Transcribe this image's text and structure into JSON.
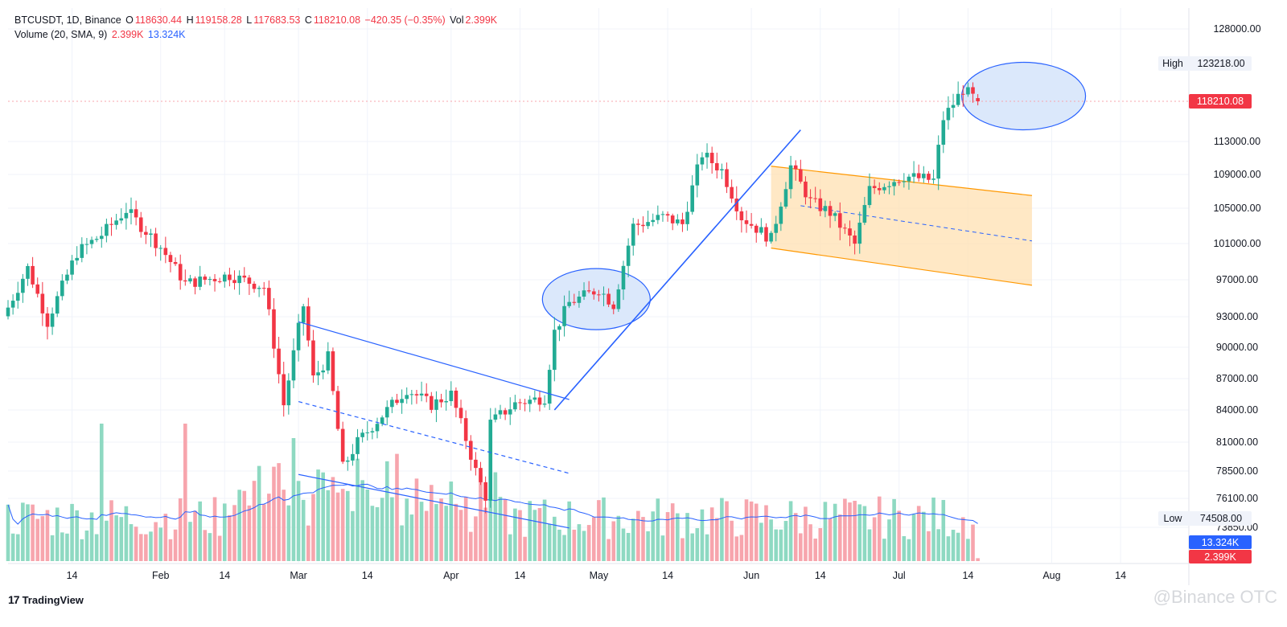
{
  "legend": {
    "symbol": "BTCUSDT, 1D, Binance",
    "o_label": "O",
    "o": "118630.44",
    "h_label": "H",
    "h": "119158.28",
    "l_label": "L",
    "l": "117683.53",
    "c_label": "C",
    "c": "118210.08",
    "change": "−420.35 (−0.35%)",
    "vol_label": "Vol",
    "vol": "2.399K",
    "volume_study": "Volume (20, SMA, 9)",
    "volume_value": "2.399K",
    "volume_sma": "13.324K"
  },
  "brand": {
    "logo": "17",
    "name": "TradingView"
  },
  "watermark": "@Binance OTC",
  "colors": {
    "up": "#22ab94",
    "down": "#f23645",
    "vol_up": "#8ed9c2",
    "vol_down": "#f7a5ad",
    "sma": "#2962ff",
    "trend": "#2962ff",
    "channel_fill": "#ffe0b2",
    "channel_edge": "#ff9800",
    "ellipse_fill": "#dbe8fb",
    "grid": "#f0f3fa"
  },
  "chart_data": {
    "type": "candlestick",
    "symbol": "BTCUSDT",
    "interval": "1D",
    "exchange": "Binance",
    "xlabel": "",
    "ylabel": "",
    "x_ticks": [
      "14",
      "Feb",
      "14",
      "Mar",
      "14",
      "Apr",
      "14",
      "May",
      "14",
      "Jun",
      "14",
      "Jul",
      "14",
      "Aug",
      "14"
    ],
    "y_ticks": [
      "128000.00",
      "113000.00",
      "109000.00",
      "105000.00",
      "101000.00",
      "97000.00",
      "93000.00",
      "90000.00",
      "87000.00",
      "84000.00",
      "81000.00",
      "78500.00",
      "76100.00",
      "73850.00"
    ],
    "y_range": [
      73500,
      129500
    ],
    "grid": true,
    "price_labels": [
      {
        "name": "High",
        "value": "123218.00"
      },
      {
        "name": "Low",
        "value": "74508.00"
      },
      {
        "name": "",
        "value": "118210.08",
        "kind": "last-price"
      }
    ],
    "volume_labels": [
      {
        "value": "13.324K",
        "kind": "sma"
      },
      {
        "value": "2.399K",
        "kind": "volume"
      }
    ],
    "anchors": [
      {
        "date": "2025-01-01",
        "close": 94000
      },
      {
        "date": "2025-01-05",
        "close": 98300
      },
      {
        "date": "2025-01-09",
        "close": 92500
      },
      {
        "date": "2025-01-15",
        "close": 100000
      },
      {
        "date": "2025-01-20",
        "close": 102000
      },
      {
        "date": "2025-01-25",
        "close": 104800
      },
      {
        "date": "2025-02-01",
        "close": 100600
      },
      {
        "date": "2025-02-06",
        "close": 96600
      },
      {
        "date": "2025-02-15",
        "close": 97500
      },
      {
        "date": "2025-02-22",
        "close": 96200
      },
      {
        "date": "2025-02-26",
        "close": 84500
      },
      {
        "date": "2025-03-02",
        "close": 94200
      },
      {
        "date": "2025-03-04",
        "close": 87000
      },
      {
        "date": "2025-03-07",
        "close": 89000
      },
      {
        "date": "2025-03-10",
        "close": 78800
      },
      {
        "date": "2025-03-13",
        "close": 81000
      },
      {
        "date": "2025-03-18",
        "close": 83500
      },
      {
        "date": "2025-03-23",
        "close": 86000
      },
      {
        "date": "2025-03-28",
        "close": 84500
      },
      {
        "date": "2025-04-01",
        "close": 85500
      },
      {
        "date": "2025-04-06",
        "close": 78500
      },
      {
        "date": "2025-04-08",
        "close": 76300
      },
      {
        "date": "2025-04-09",
        "close": 82800
      },
      {
        "date": "2025-04-14",
        "close": 84600
      },
      {
        "date": "2025-04-20",
        "close": 85200
      },
      {
        "date": "2025-04-22",
        "close": 91500
      },
      {
        "date": "2025-04-25",
        "close": 94500
      },
      {
        "date": "2025-05-01",
        "close": 96000
      },
      {
        "date": "2025-05-04",
        "close": 94300
      },
      {
        "date": "2025-05-08",
        "close": 103000
      },
      {
        "date": "2025-05-14",
        "close": 104000
      },
      {
        "date": "2025-05-18",
        "close": 103200
      },
      {
        "date": "2025-05-21",
        "close": 109500
      },
      {
        "date": "2025-05-22",
        "close": 111500
      },
      {
        "date": "2025-05-26",
        "close": 109500
      },
      {
        "date": "2025-05-30",
        "close": 104000
      },
      {
        "date": "2025-06-05",
        "close": 101500
      },
      {
        "date": "2025-06-09",
        "close": 110000
      },
      {
        "date": "2025-06-13",
        "close": 105800
      },
      {
        "date": "2025-06-17",
        "close": 104500
      },
      {
        "date": "2025-06-22",
        "close": 100900
      },
      {
        "date": "2025-06-25",
        "close": 107200
      },
      {
        "date": "2025-07-02",
        "close": 108800
      },
      {
        "date": "2025-07-08",
        "close": 108300
      },
      {
        "date": "2025-07-10",
        "close": 116000
      },
      {
        "date": "2025-07-14",
        "close": 119800
      },
      {
        "date": "2025-07-17",
        "close": 118210
      }
    ],
    "annotations": [
      {
        "type": "falling-channel",
        "from": "2025-02-28",
        "to": "2025-04-21"
      },
      {
        "type": "trendline",
        "from": "2025-04-21",
        "to": "2025-06-01"
      },
      {
        "type": "ellipse",
        "around": "2025-04-23 to 2025-05-05"
      },
      {
        "type": "falling-channel",
        "from": "2025-06-05",
        "to": "2025-08-01",
        "filled": true
      },
      {
        "type": "ellipse",
        "around": "2025-07-12 to 2025-07-22"
      }
    ]
  }
}
